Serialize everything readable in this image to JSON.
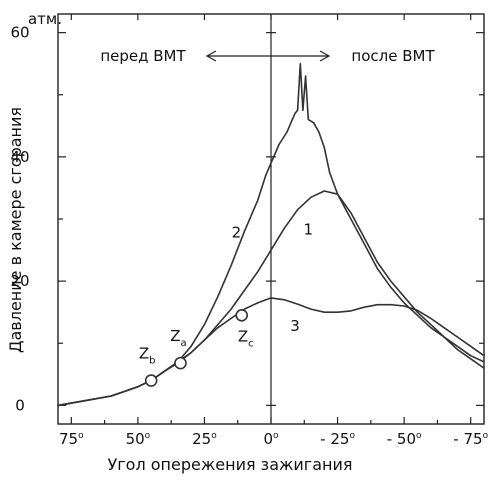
{
  "chart_data": {
    "type": "line",
    "title": "",
    "xlabel": "Угол опережения зажигания",
    "ylabel": "Давление в камере сгорания",
    "y_unit": "атм.",
    "x_direction": "reversed",
    "xlim": [
      80,
      -80
    ],
    "ylim": [
      -3,
      63
    ],
    "x_ticks": [
      {
        "value": 75,
        "label": "75o"
      },
      {
        "value": 50,
        "label": "50o"
      },
      {
        "value": 25,
        "label": "25o"
      },
      {
        "value": 0,
        "label": "0o"
      },
      {
        "value": -25,
        "label": "- 25o"
      },
      {
        "value": -50,
        "label": "- 50o"
      },
      {
        "value": -75,
        "label": "- 75o"
      }
    ],
    "y_ticks": [
      {
        "value": 0,
        "label": "0"
      },
      {
        "value": 20,
        "label": "20"
      },
      {
        "value": 40,
        "label": "40"
      },
      {
        "value": 60,
        "label": "60"
      }
    ],
    "y_minor_ticks": [
      10,
      30,
      50
    ],
    "grid": false,
    "annotations": {
      "before_tdc": "перед ВМТ",
      "after_tdc": "после ВМТ"
    },
    "series": [
      {
        "name": "1",
        "x": [
          80,
          60,
          50,
          45,
          40,
          35,
          30,
          25,
          20,
          15,
          10,
          5,
          0,
          -5,
          -10,
          -15,
          -20,
          -25,
          -30,
          -35,
          -40,
          -45,
          -50,
          -55,
          -60,
          -65,
          -70,
          -75,
          -80
        ],
        "y": [
          0,
          1.5,
          3,
          4,
          5.5,
          6.8,
          8.5,
          10.5,
          13,
          15.5,
          18.5,
          21.5,
          25,
          28.5,
          31.5,
          33.5,
          34.5,
          34,
          31,
          27,
          23,
          20,
          17.5,
          15,
          13,
          11,
          9,
          7.5,
          6
        ]
      },
      {
        "name": "2",
        "x": [
          80,
          60,
          50,
          45,
          40,
          35,
          30,
          25,
          20,
          15,
          10,
          5,
          2,
          0,
          -3,
          -6,
          -8,
          -9,
          -10,
          -11,
          -12,
          -13,
          -14,
          -16,
          -18,
          -20,
          -22,
          -25,
          -30,
          -35,
          -40,
          -45,
          -50,
          -55,
          -60,
          -65,
          -70,
          -75,
          -80
        ],
        "y": [
          0,
          1.5,
          3,
          4,
          5.5,
          7,
          9.5,
          13,
          17.5,
          22.5,
          28,
          33,
          37,
          39,
          42,
          44,
          46,
          47,
          47.5,
          55,
          47.5,
          53,
          46,
          45.5,
          44,
          41.5,
          37.5,
          34,
          30,
          26,
          22,
          19,
          16.5,
          14.5,
          12.5,
          11,
          9.5,
          8,
          7
        ]
      },
      {
        "name": "3",
        "x": [
          80,
          60,
          50,
          45,
          40,
          35,
          30,
          25,
          20,
          15,
          10,
          5,
          0,
          -5,
          -10,
          -15,
          -20,
          -25,
          -30,
          -35,
          -40,
          -45,
          -50,
          -55,
          -60,
          -65,
          -70,
          -75,
          -80
        ],
        "y": [
          0,
          1.5,
          3,
          4,
          5.5,
          7,
          8.5,
          10.5,
          12.5,
          14,
          15.5,
          16.5,
          17.3,
          17,
          16.3,
          15.5,
          15,
          15,
          15.2,
          15.8,
          16.2,
          16.2,
          16,
          15.3,
          14,
          12.5,
          11,
          9.5,
          8
        ]
      }
    ],
    "series_labels": [
      {
        "series": "1",
        "text": "1",
        "x": -14,
        "y": 27.5
      },
      {
        "series": "2",
        "text": "2",
        "x": 13,
        "y": 27
      },
      {
        "series": "3",
        "text": "3",
        "x": -9,
        "y": 12
      }
    ],
    "points": [
      {
        "id": "Zb",
        "base": "Z",
        "sub": "b",
        "x": 45,
        "y": 4
      },
      {
        "id": "Za",
        "base": "Z",
        "sub": "a",
        "x": 34,
        "y": 6.8
      },
      {
        "id": "Zc",
        "base": "Z",
        "sub": "c",
        "x": 11,
        "y": 14.5
      }
    ]
  }
}
